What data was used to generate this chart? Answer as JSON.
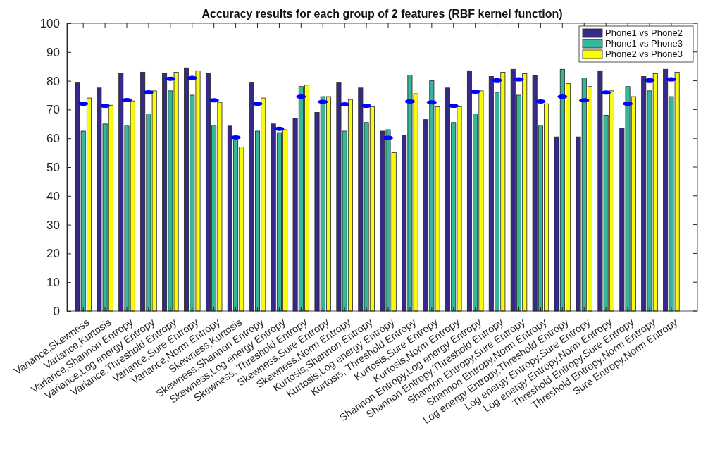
{
  "chart_data": {
    "type": "bar",
    "title": "Accuracy results for each group of 2 features (RBF kernel function)",
    "categories": [
      "Variance,Skewness",
      "Variance,Kurtosis",
      "Variance,Shannon Entropy",
      "Variance,Log energy Entropy",
      "Variance,Threshold Entropy",
      "Variance,Sure Entropy",
      "Variance,Norm Entropy",
      "Skewness,Kurtosis",
      "Skewness,Shannon Entropy",
      "Skewness,Log energy Entropy",
      "Skewness, Threshold Entropy",
      "Skewness,Sure Entropy",
      "Skewness,Norm Entropy",
      "Kurtosis,Shannon Entropy",
      "Kurtosis,Log energy Entropy",
      "Kurtosis, Threshold Entropy",
      "Kurtosis,Sure Entropy",
      "Kurtosis,Norm Entropy",
      "Shannon Entropy,Log energy Entropy",
      "Shannon Entropy,Threshold Entropy",
      "Shannon Entropy,Sure Entropy",
      "Shannon Entropy,Norm Entropy",
      "Log energy Entropy,Threshold Entropy",
      "Log energy Entropy,Sure Entropy",
      "Log energy Entropy,Norm Entropy",
      "Threshold Entropy,Sure Entropy",
      "Threshold Entropy,Norm Entropy",
      "Sure Entropy,Norm Entropy"
    ],
    "series": [
      {
        "name": "Phone1 vs Phone2",
        "color": "#352a87",
        "values": [
          79.5,
          77.5,
          82.5,
          83,
          82.5,
          84.5,
          82.5,
          64.5,
          79.5,
          65,
          67,
          69,
          79.5,
          77.5,
          62.5,
          61,
          66.5,
          77.5,
          83.5,
          81.5,
          84,
          82,
          60.5,
          60.5,
          83.5,
          63.5,
          81.5,
          84
        ]
      },
      {
        "name": "Phone1 vs Phone3",
        "color": "#35b79b",
        "values": [
          62.5,
          65,
          64.5,
          68.5,
          76.5,
          75,
          64.5,
          59.5,
          62.5,
          62,
          78,
          74.5,
          62.5,
          65.5,
          63,
          82,
          80,
          65.5,
          68.5,
          76,
          75,
          64.5,
          84,
          81,
          68,
          78,
          76.5,
          74.5
        ]
      },
      {
        "name": "Phone2 vs Phone3",
        "color": "#f9fb0e",
        "values": [
          74,
          71.5,
          73,
          76.5,
          83,
          83.5,
          72.5,
          57,
          74,
          63,
          78.5,
          74.5,
          73.5,
          71,
          55,
          75.5,
          71,
          71,
          76.5,
          83,
          82.5,
          72,
          79,
          78,
          76.5,
          74.5,
          82.5,
          83
        ]
      },
      {
        "type": "scatter",
        "color": "#0000ff",
        "x": [
          "Variance,Skewness",
          "Variance,Kurtosis",
          "Variance,Shannon Entropy",
          "Variance,Log energy Entropy",
          "Variance,Threshold Entropy",
          "Variance,Sure Entropy",
          "Variance,Norm Entropy",
          "Skewness,Kurtosis",
          "Skewness,Shannon Entropy",
          "Skewness,Log energy Entropy",
          "Skewness, Threshold Entropy",
          "Skewness,Sure Entropy",
          "Skewness,Norm Entropy",
          "Kurtosis,Shannon Entropy",
          "Kurtosis,Log energy Entropy",
          "Kurtosis, Threshold Entropy",
          "Kurtosis,Sure Entropy",
          "Kurtosis,Norm Entropy",
          "Shannon Entropy,Log energy Entropy",
          "Shannon Entropy,Threshold Entropy",
          "Shannon Entropy,Sure Entropy",
          "Shannon Entropy,Norm Entropy",
          "Log energy Entropy,Threshold Entropy",
          "Log energy Entropy,Sure Entropy",
          "Log energy Entropy,Norm Entropy",
          "Threshold Entropy,Sure Entropy",
          "Threshold Entropy,Norm Entropy",
          "Sure Entropy,Norm Entropy"
        ],
        "values": [
          72,
          71.3,
          73.3,
          76,
          80.7,
          81,
          73.2,
          60.3,
          72,
          63.3,
          74.5,
          72.7,
          71.8,
          71.3,
          60.2,
          72.8,
          72.5,
          71.3,
          76.2,
          80.2,
          80.5,
          72.8,
          74.5,
          73.2,
          75.9,
          72,
          80.2,
          80.5
        ]
      }
    ],
    "ylim": [
      0,
      100
    ],
    "yticks": [
      0,
      10,
      20,
      30,
      40,
      50,
      60,
      70,
      80,
      90,
      100
    ],
    "legend": "top right"
  }
}
